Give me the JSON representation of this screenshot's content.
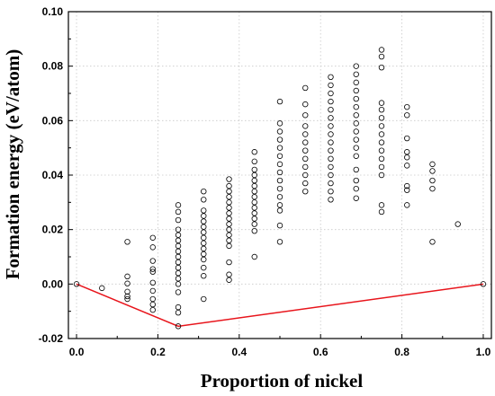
{
  "chart_data": {
    "type": "scatter",
    "xlabel": "Proportion of nickel",
    "ylabel": "Formation energy (eV/atom)",
    "xlim": [
      -0.02,
      1.02
    ],
    "ylim": [
      -0.02,
      0.1
    ],
    "x_ticks": [
      0.0,
      0.2,
      0.4,
      0.6,
      0.8,
      1.0
    ],
    "x_tick_labels": [
      "0.0",
      "0.2",
      "0.4",
      "0.6",
      "0.8",
      "1.0"
    ],
    "y_ticks": [
      -0.02,
      0.0,
      0.02,
      0.04,
      0.06,
      0.08,
      0.1
    ],
    "y_tick_labels": [
      "-0.02",
      "0.00",
      "0.02",
      "0.04",
      "0.06",
      "0.08",
      "0.10"
    ],
    "grid": "dotted",
    "colors": {
      "points": "#000000",
      "hull": "#e8141b"
    },
    "hull": [
      {
        "x": 0.0,
        "y": 0.0
      },
      {
        "x": 0.25,
        "y": -0.0155
      },
      {
        "x": 1.0,
        "y": 0.0
      }
    ],
    "series": [
      {
        "marker": "open-circle",
        "points": [
          {
            "x": 0.0,
            "y": 0.0
          },
          {
            "x": 0.0625,
            "y": -0.0015
          },
          {
            "x": 0.125,
            "y": 0.0155
          },
          {
            "x": 0.125,
            "y": 0.0028
          },
          {
            "x": 0.125,
            "y": 0.0002
          },
          {
            "x": 0.125,
            "y": -0.0028
          },
          {
            "x": 0.125,
            "y": -0.0045
          },
          {
            "x": 0.125,
            "y": -0.0055
          },
          {
            "x": 0.1875,
            "y": 0.017
          },
          {
            "x": 0.1875,
            "y": 0.0135
          },
          {
            "x": 0.1875,
            "y": 0.0085
          },
          {
            "x": 0.1875,
            "y": 0.0055
          },
          {
            "x": 0.1875,
            "y": 0.0045
          },
          {
            "x": 0.1875,
            "y": 0.0005
          },
          {
            "x": 0.1875,
            "y": -0.0025
          },
          {
            "x": 0.1875,
            "y": -0.0055
          },
          {
            "x": 0.1875,
            "y": -0.0075
          },
          {
            "x": 0.1875,
            "y": -0.0095
          },
          {
            "x": 0.25,
            "y": 0.029
          },
          {
            "x": 0.25,
            "y": 0.0265
          },
          {
            "x": 0.25,
            "y": 0.0235
          },
          {
            "x": 0.25,
            "y": 0.02
          },
          {
            "x": 0.25,
            "y": 0.018
          },
          {
            "x": 0.25,
            "y": 0.016
          },
          {
            "x": 0.25,
            "y": 0.014
          },
          {
            "x": 0.25,
            "y": 0.012
          },
          {
            "x": 0.25,
            "y": 0.01
          },
          {
            "x": 0.25,
            "y": 0.008
          },
          {
            "x": 0.25,
            "y": 0.006
          },
          {
            "x": 0.25,
            "y": 0.004
          },
          {
            "x": 0.25,
            "y": 0.002
          },
          {
            "x": 0.25,
            "y": 0.0
          },
          {
            "x": 0.25,
            "y": -0.003
          },
          {
            "x": 0.25,
            "y": -0.0085
          },
          {
            "x": 0.25,
            "y": -0.0105
          },
          {
            "x": 0.25,
            "y": -0.0155
          },
          {
            "x": 0.3125,
            "y": 0.034
          },
          {
            "x": 0.3125,
            "y": 0.031
          },
          {
            "x": 0.3125,
            "y": 0.027
          },
          {
            "x": 0.3125,
            "y": 0.025
          },
          {
            "x": 0.3125,
            "y": 0.023
          },
          {
            "x": 0.3125,
            "y": 0.021
          },
          {
            "x": 0.3125,
            "y": 0.019
          },
          {
            "x": 0.3125,
            "y": 0.017
          },
          {
            "x": 0.3125,
            "y": 0.015
          },
          {
            "x": 0.3125,
            "y": 0.013
          },
          {
            "x": 0.3125,
            "y": 0.011
          },
          {
            "x": 0.3125,
            "y": 0.009
          },
          {
            "x": 0.3125,
            "y": 0.006
          },
          {
            "x": 0.3125,
            "y": 0.003
          },
          {
            "x": 0.3125,
            "y": -0.0055
          },
          {
            "x": 0.375,
            "y": 0.0385
          },
          {
            "x": 0.375,
            "y": 0.036
          },
          {
            "x": 0.375,
            "y": 0.034
          },
          {
            "x": 0.375,
            "y": 0.032
          },
          {
            "x": 0.375,
            "y": 0.03
          },
          {
            "x": 0.375,
            "y": 0.028
          },
          {
            "x": 0.375,
            "y": 0.026
          },
          {
            "x": 0.375,
            "y": 0.024
          },
          {
            "x": 0.375,
            "y": 0.022
          },
          {
            "x": 0.375,
            "y": 0.02
          },
          {
            "x": 0.375,
            "y": 0.018
          },
          {
            "x": 0.375,
            "y": 0.016
          },
          {
            "x": 0.375,
            "y": 0.014
          },
          {
            "x": 0.375,
            "y": 0.008
          },
          {
            "x": 0.375,
            "y": 0.0035
          },
          {
            "x": 0.375,
            "y": 0.0015
          },
          {
            "x": 0.4375,
            "y": 0.0485
          },
          {
            "x": 0.4375,
            "y": 0.045
          },
          {
            "x": 0.4375,
            "y": 0.042
          },
          {
            "x": 0.4375,
            "y": 0.04
          },
          {
            "x": 0.4375,
            "y": 0.038
          },
          {
            "x": 0.4375,
            "y": 0.036
          },
          {
            "x": 0.4375,
            "y": 0.034
          },
          {
            "x": 0.4375,
            "y": 0.032
          },
          {
            "x": 0.4375,
            "y": 0.03
          },
          {
            "x": 0.4375,
            "y": 0.028
          },
          {
            "x": 0.4375,
            "y": 0.026
          },
          {
            "x": 0.4375,
            "y": 0.024
          },
          {
            "x": 0.4375,
            "y": 0.022
          },
          {
            "x": 0.4375,
            "y": 0.0195
          },
          {
            "x": 0.4375,
            "y": 0.01
          },
          {
            "x": 0.5,
            "y": 0.067
          },
          {
            "x": 0.5,
            "y": 0.059
          },
          {
            "x": 0.5,
            "y": 0.056
          },
          {
            "x": 0.5,
            "y": 0.053
          },
          {
            "x": 0.5,
            "y": 0.05
          },
          {
            "x": 0.5,
            "y": 0.047
          },
          {
            "x": 0.5,
            "y": 0.044
          },
          {
            "x": 0.5,
            "y": 0.041
          },
          {
            "x": 0.5,
            "y": 0.038
          },
          {
            "x": 0.5,
            "y": 0.035
          },
          {
            "x": 0.5,
            "y": 0.032
          },
          {
            "x": 0.5,
            "y": 0.029
          },
          {
            "x": 0.5,
            "y": 0.027
          },
          {
            "x": 0.5,
            "y": 0.0215
          },
          {
            "x": 0.5,
            "y": 0.0155
          },
          {
            "x": 0.5625,
            "y": 0.072
          },
          {
            "x": 0.5625,
            "y": 0.066
          },
          {
            "x": 0.5625,
            "y": 0.062
          },
          {
            "x": 0.5625,
            "y": 0.058
          },
          {
            "x": 0.5625,
            "y": 0.055
          },
          {
            "x": 0.5625,
            "y": 0.052
          },
          {
            "x": 0.5625,
            "y": 0.049
          },
          {
            "x": 0.5625,
            "y": 0.046
          },
          {
            "x": 0.5625,
            "y": 0.043
          },
          {
            "x": 0.5625,
            "y": 0.04
          },
          {
            "x": 0.5625,
            "y": 0.037
          },
          {
            "x": 0.5625,
            "y": 0.034
          },
          {
            "x": 0.625,
            "y": 0.076
          },
          {
            "x": 0.625,
            "y": 0.073
          },
          {
            "x": 0.625,
            "y": 0.07
          },
          {
            "x": 0.625,
            "y": 0.067
          },
          {
            "x": 0.625,
            "y": 0.064
          },
          {
            "x": 0.625,
            "y": 0.061
          },
          {
            "x": 0.625,
            "y": 0.058
          },
          {
            "x": 0.625,
            "y": 0.055
          },
          {
            "x": 0.625,
            "y": 0.052
          },
          {
            "x": 0.625,
            "y": 0.049
          },
          {
            "x": 0.625,
            "y": 0.046
          },
          {
            "x": 0.625,
            "y": 0.043
          },
          {
            "x": 0.625,
            "y": 0.04
          },
          {
            "x": 0.625,
            "y": 0.037
          },
          {
            "x": 0.625,
            "y": 0.034
          },
          {
            "x": 0.625,
            "y": 0.031
          },
          {
            "x": 0.6875,
            "y": 0.08
          },
          {
            "x": 0.6875,
            "y": 0.077
          },
          {
            "x": 0.6875,
            "y": 0.074
          },
          {
            "x": 0.6875,
            "y": 0.071
          },
          {
            "x": 0.6875,
            "y": 0.068
          },
          {
            "x": 0.6875,
            "y": 0.065
          },
          {
            "x": 0.6875,
            "y": 0.062
          },
          {
            "x": 0.6875,
            "y": 0.059
          },
          {
            "x": 0.6875,
            "y": 0.056
          },
          {
            "x": 0.6875,
            "y": 0.053
          },
          {
            "x": 0.6875,
            "y": 0.05
          },
          {
            "x": 0.6875,
            "y": 0.047
          },
          {
            "x": 0.6875,
            "y": 0.042
          },
          {
            "x": 0.6875,
            "y": 0.038
          },
          {
            "x": 0.6875,
            "y": 0.035
          },
          {
            "x": 0.6875,
            "y": 0.0315
          },
          {
            "x": 0.75,
            "y": 0.086
          },
          {
            "x": 0.75,
            "y": 0.0835
          },
          {
            "x": 0.75,
            "y": 0.0795
          },
          {
            "x": 0.75,
            "y": 0.0665
          },
          {
            "x": 0.75,
            "y": 0.064
          },
          {
            "x": 0.75,
            "y": 0.061
          },
          {
            "x": 0.75,
            "y": 0.058
          },
          {
            "x": 0.75,
            "y": 0.055
          },
          {
            "x": 0.75,
            "y": 0.052
          },
          {
            "x": 0.75,
            "y": 0.049
          },
          {
            "x": 0.75,
            "y": 0.046
          },
          {
            "x": 0.75,
            "y": 0.043
          },
          {
            "x": 0.75,
            "y": 0.04
          },
          {
            "x": 0.75,
            "y": 0.029
          },
          {
            "x": 0.75,
            "y": 0.0265
          },
          {
            "x": 0.8125,
            "y": 0.065
          },
          {
            "x": 0.8125,
            "y": 0.062
          },
          {
            "x": 0.8125,
            "y": 0.0535
          },
          {
            "x": 0.8125,
            "y": 0.0485
          },
          {
            "x": 0.8125,
            "y": 0.0465
          },
          {
            "x": 0.8125,
            "y": 0.0435
          },
          {
            "x": 0.8125,
            "y": 0.036
          },
          {
            "x": 0.8125,
            "y": 0.0345
          },
          {
            "x": 0.8125,
            "y": 0.029
          },
          {
            "x": 0.875,
            "y": 0.044
          },
          {
            "x": 0.875,
            "y": 0.0415
          },
          {
            "x": 0.875,
            "y": 0.038
          },
          {
            "x": 0.875,
            "y": 0.035
          },
          {
            "x": 0.875,
            "y": 0.0155
          },
          {
            "x": 0.9375,
            "y": 0.022
          },
          {
            "x": 1.0,
            "y": 0.0
          }
        ]
      }
    ]
  }
}
